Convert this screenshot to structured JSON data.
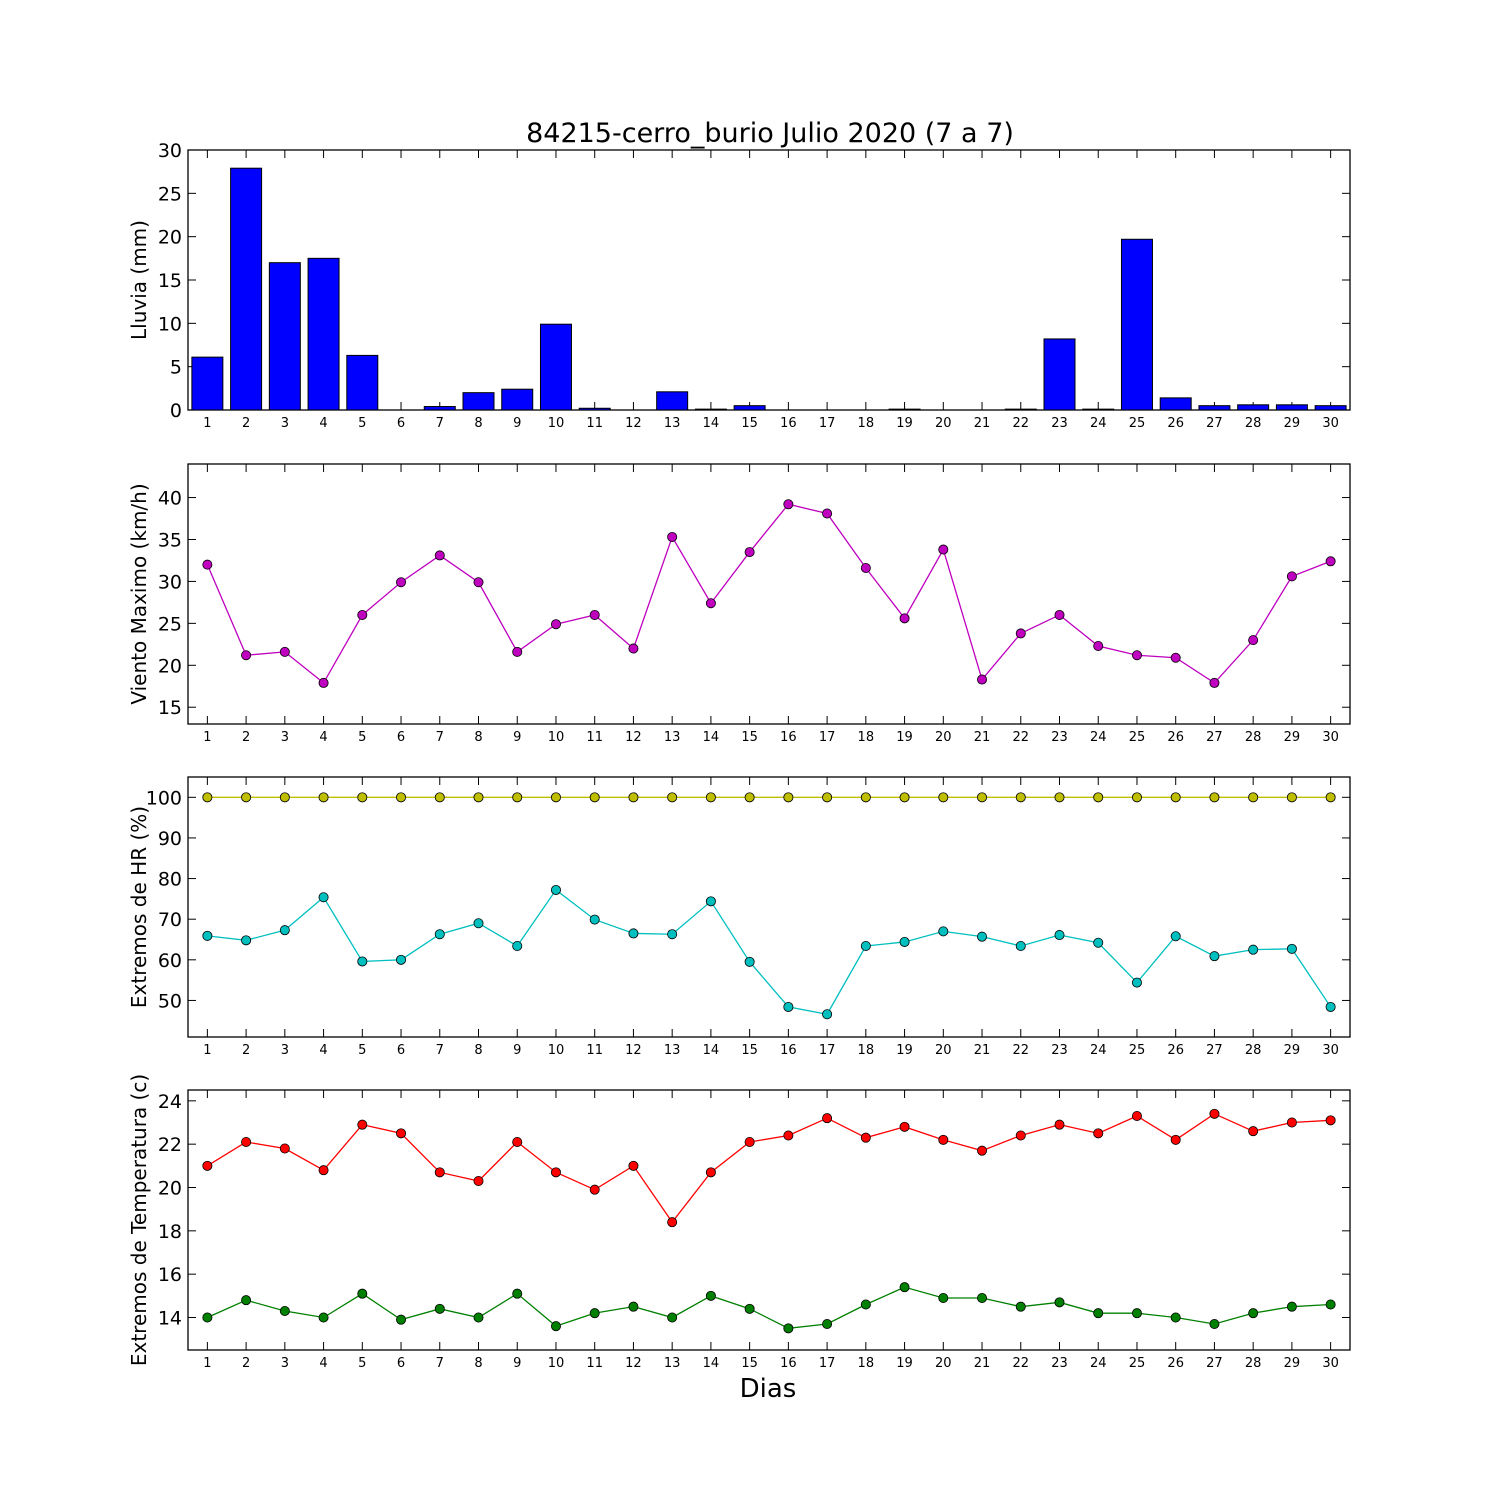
{
  "figure": {
    "title": "84215-cerro_burio Julio 2020  (7 a 7)",
    "xlabel": "Dias"
  },
  "chart_data": [
    {
      "type": "bar",
      "ylabel": "Lluvia (mm)",
      "ylim": [
        0,
        30
      ],
      "yticks": [
        0,
        5,
        10,
        15,
        20,
        25,
        30
      ],
      "categories": [
        1,
        2,
        3,
        4,
        5,
        6,
        7,
        8,
        9,
        10,
        11,
        12,
        13,
        14,
        15,
        16,
        17,
        18,
        19,
        20,
        21,
        22,
        23,
        24,
        25,
        26,
        27,
        28,
        29,
        30
      ],
      "grid": false,
      "series": [
        {
          "color": "#0000ff",
          "values": [
            6.1,
            27.9,
            17.0,
            17.5,
            6.3,
            0.0,
            0.4,
            2.0,
            2.4,
            9.9,
            0.2,
            0.0,
            2.1,
            0.1,
            0.5,
            0.0,
            0.0,
            0.0,
            0.1,
            0.0,
            0.0,
            0.1,
            8.2,
            0.1,
            19.7,
            1.4,
            0.5,
            0.6,
            0.6,
            0.5
          ]
        }
      ]
    },
    {
      "type": "line",
      "ylabel": "Viento Maximo (km/h)",
      "ylim": [
        13,
        44
      ],
      "yticks": [
        15,
        20,
        25,
        30,
        35,
        40
      ],
      "x": [
        1,
        2,
        3,
        4,
        5,
        6,
        7,
        8,
        9,
        10,
        11,
        12,
        13,
        14,
        15,
        16,
        17,
        18,
        19,
        20,
        21,
        22,
        23,
        24,
        25,
        26,
        27,
        28,
        29,
        30
      ],
      "grid": false,
      "series": [
        {
          "color": "#bf00bf",
          "values": [
            32.0,
            21.2,
            21.6,
            17.9,
            26.0,
            29.9,
            33.1,
            29.9,
            21.6,
            24.9,
            26.0,
            22.0,
            35.3,
            27.4,
            33.5,
            39.2,
            38.1,
            31.6,
            25.6,
            33.8,
            18.3,
            23.8,
            26.0,
            22.3,
            21.2,
            20.9,
            17.9,
            23.0,
            30.6,
            32.4
          ]
        }
      ]
    },
    {
      "type": "line",
      "ylabel": "Extremos de HR (%)",
      "ylim": [
        41,
        105
      ],
      "yticks": [
        50,
        60,
        70,
        80,
        90,
        100
      ],
      "x": [
        1,
        2,
        3,
        4,
        5,
        6,
        7,
        8,
        9,
        10,
        11,
        12,
        13,
        14,
        15,
        16,
        17,
        18,
        19,
        20,
        21,
        22,
        23,
        24,
        25,
        26,
        27,
        28,
        29,
        30
      ],
      "grid": false,
      "series": [
        {
          "color": "#bfbf00",
          "values": [
            100,
            100,
            100,
            100,
            100,
            100,
            100,
            100,
            100,
            100,
            100,
            100,
            100,
            100,
            100,
            100,
            100,
            100,
            100,
            100,
            100,
            100,
            100,
            100,
            100,
            100,
            100,
            100,
            100,
            100
          ]
        },
        {
          "color": "#00bfbf",
          "values": [
            65.9,
            64.8,
            67.3,
            75.4,
            59.6,
            60.0,
            66.3,
            69.0,
            63.4,
            77.2,
            69.9,
            66.5,
            66.3,
            74.4,
            59.5,
            48.4,
            46.6,
            63.4,
            64.4,
            67.0,
            65.7,
            63.4,
            66.1,
            64.2,
            54.4,
            65.8,
            60.9,
            62.5,
            62.7,
            48.4
          ]
        }
      ]
    },
    {
      "type": "line",
      "ylabel": "Extremos de Temperatura (c)",
      "ylim": [
        12.5,
        24.5
      ],
      "yticks": [
        14,
        16,
        18,
        20,
        22,
        24
      ],
      "x": [
        1,
        2,
        3,
        4,
        5,
        6,
        7,
        8,
        9,
        10,
        11,
        12,
        13,
        14,
        15,
        16,
        17,
        18,
        19,
        20,
        21,
        22,
        23,
        24,
        25,
        26,
        27,
        28,
        29,
        30
      ],
      "grid": false,
      "series": [
        {
          "color": "#ff0000",
          "values": [
            21.0,
            22.1,
            21.8,
            20.8,
            22.9,
            22.5,
            20.7,
            20.3,
            22.1,
            20.7,
            19.9,
            21.0,
            18.4,
            20.7,
            22.1,
            22.4,
            23.2,
            22.3,
            22.8,
            22.2,
            21.7,
            22.4,
            22.9,
            22.5,
            23.3,
            22.2,
            23.4,
            22.6,
            23.0,
            23.1
          ]
        },
        {
          "color": "#008000",
          "values": [
            14.0,
            14.8,
            14.3,
            14.0,
            15.1,
            13.9,
            14.4,
            14.0,
            15.1,
            13.6,
            14.2,
            14.5,
            14.0,
            15.0,
            14.4,
            13.5,
            13.7,
            14.6,
            15.4,
            14.9,
            14.9,
            14.5,
            14.7,
            14.2,
            14.2,
            14.0,
            13.7,
            14.2,
            14.5,
            14.6
          ]
        }
      ]
    }
  ]
}
